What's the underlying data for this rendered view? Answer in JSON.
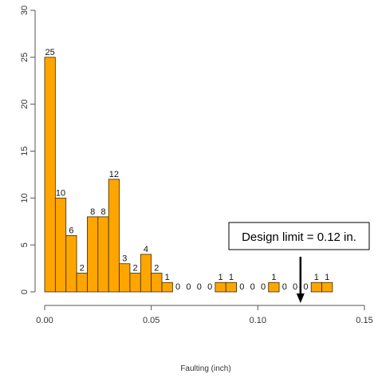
{
  "chart_data": {
    "type": "bar",
    "title": "",
    "xlabel": "Faulting (inch)",
    "ylabel": "",
    "xlim": [
      0,
      0.15
    ],
    "ylim": [
      0,
      30
    ],
    "x_ticks": [
      0.0,
      0.05,
      0.1,
      0.15
    ],
    "x_tick_labels": [
      "0.00",
      "0.05",
      "0.10",
      "0.15"
    ],
    "y_ticks": [
      0,
      5,
      10,
      15,
      20,
      25,
      30
    ],
    "y_tick_labels": [
      "0",
      "5",
      "10",
      "15",
      "20",
      "25",
      "30"
    ],
    "bin_width": 0.005,
    "bins_start": [
      0.0,
      0.005,
      0.01,
      0.015,
      0.02,
      0.025,
      0.03,
      0.035,
      0.04,
      0.045,
      0.05,
      0.055,
      0.06,
      0.065,
      0.07,
      0.075,
      0.08,
      0.085,
      0.09,
      0.095,
      0.1,
      0.105,
      0.11,
      0.115,
      0.12,
      0.125,
      0.13
    ],
    "values": [
      25,
      10,
      6,
      2,
      8,
      8,
      12,
      3,
      2,
      4,
      2,
      1,
      0,
      0,
      0,
      0,
      1,
      1,
      0,
      0,
      0,
      1,
      0,
      0,
      0,
      1,
      1
    ],
    "data_labels": [
      "25",
      "10",
      "6",
      "2",
      "8",
      "8",
      "12",
      "3",
      "2",
      "4",
      "2",
      "1",
      "0",
      "0",
      "0",
      "0",
      "1",
      "1",
      "0",
      "0",
      "0",
      "1",
      "0",
      "0",
      "0",
      "1",
      "1"
    ],
    "bar_color": "#FFA500",
    "bar_edge_color": "#3a2a00",
    "label_color_low": "#1a237e",
    "grid": false,
    "annotation": {
      "text": "Design limit = 0.12 in.",
      "x": 0.12
    }
  }
}
